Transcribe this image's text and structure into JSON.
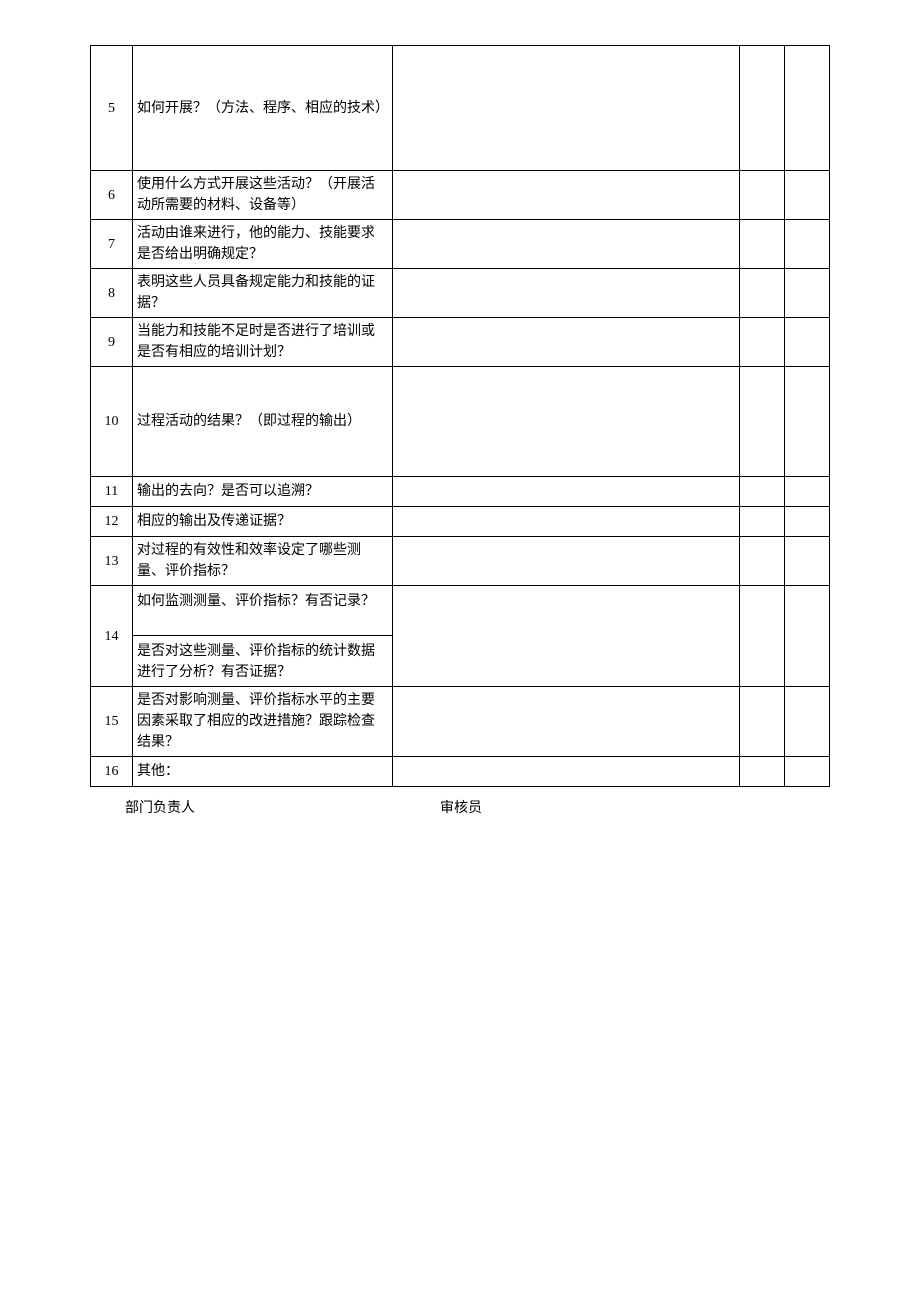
{
  "table": {
    "rows": [
      {
        "num": "5",
        "question": "如何开展？（方法、程序、相应的技术）",
        "class": "row-5",
        "rowspan": 1
      },
      {
        "num": "6",
        "question": "使用什么方式开展这些活动？（开展活动所需要的材料、设备等）",
        "class": "row-6",
        "rowspan": 1
      },
      {
        "num": "7",
        "question": "活动由谁来进行，他的能力、技能要求是否给出明确规定？",
        "class": "row-7",
        "rowspan": 1
      },
      {
        "num": "8",
        "question": "表明这些人员具备规定能力和技能的证据？",
        "class": "row-8",
        "rowspan": 1
      },
      {
        "num": "9",
        "question": "当能力和技能不足时是否进行了培训或是否有相应的培训计划？",
        "class": "row-9",
        "rowspan": 1
      },
      {
        "num": "10",
        "question": "过程活动的结果？（即过程的输出）",
        "class": "row-10",
        "rowspan": 1
      },
      {
        "num": "11",
        "question": "输出的去向？是否可以追溯？",
        "class": "row-11",
        "rowspan": 1
      },
      {
        "num": "12",
        "question": "相应的输出及传递证据？",
        "class": "row-12",
        "rowspan": 1
      },
      {
        "num": "13",
        "question": "对过程的有效性和效率设定了哪些测量、评价指标？",
        "class": "row-13",
        "rowspan": 1
      },
      {
        "num": "14",
        "question_a": "如何监测测量、评价指标？有否记录？",
        "question_b": "是否对这些测量、评价指标的统计数据进行了分析？有否证据？",
        "class_a": "row-14a",
        "class_b": "row-14b",
        "rowspan": 2
      },
      {
        "num": "15",
        "question": "是否对影响测量、评价指标水平的主要因素采取了相应的改进措施？跟踪检查结果？",
        "class": "row-15",
        "rowspan": 1
      },
      {
        "num": "16",
        "question": "其他：",
        "class": "row-16",
        "rowspan": 1
      }
    ]
  },
  "footer": {
    "label1": "部门负责人",
    "label2": "审核员"
  },
  "style": {
    "border_color": "#000000",
    "background_color": "#ffffff",
    "text_color": "#000000",
    "body_fontsize": 14,
    "col_widths": {
      "num": 42,
      "question": 260,
      "c1": 45,
      "c2": 45
    }
  }
}
